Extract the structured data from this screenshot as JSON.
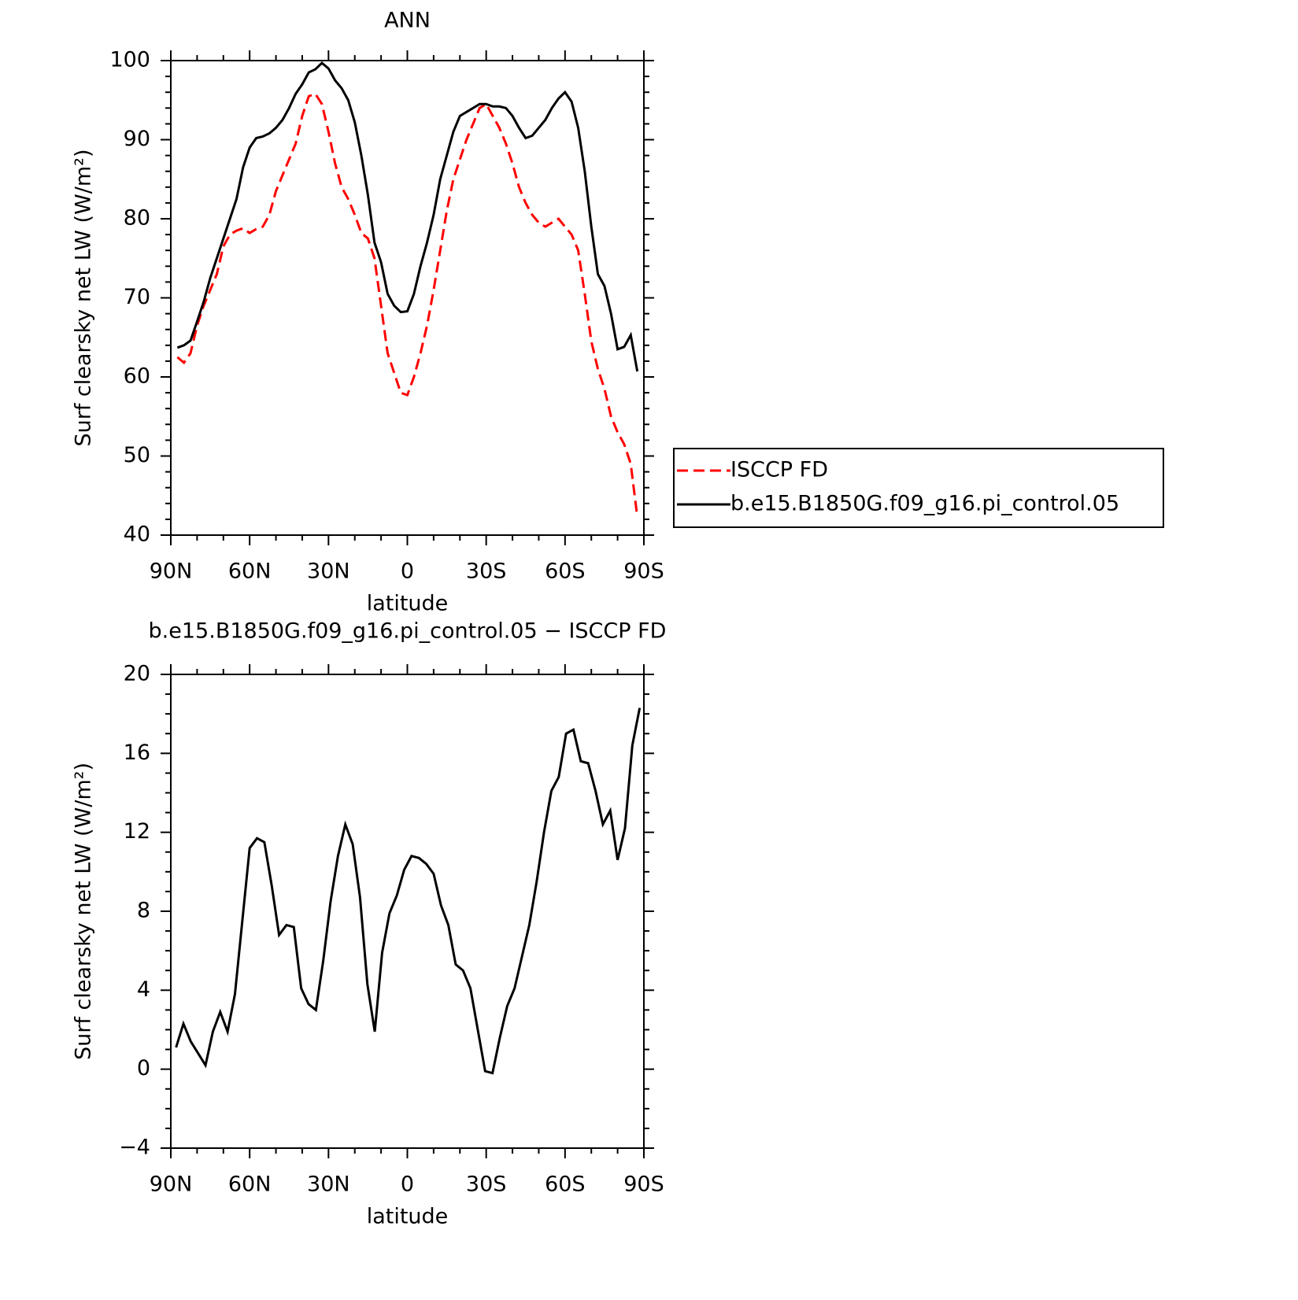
{
  "chart_data": [
    {
      "type": "line",
      "title": "ANN",
      "xlabel": "latitude",
      "ylabel": "Surf clearsky net LW (W/m²)",
      "x": [
        87.5,
        85,
        82.5,
        80,
        77.5,
        75,
        72.5,
        70,
        67.5,
        65,
        62.5,
        60,
        57.5,
        55,
        52.5,
        50,
        47.5,
        45,
        42.5,
        40,
        37.5,
        35,
        32.5,
        30,
        27.5,
        25,
        22.5,
        20,
        17.5,
        15,
        12.5,
        10,
        7.5,
        5,
        2.5,
        0,
        -2.5,
        -5,
        -7.5,
        -10,
        -12.5,
        -15,
        -17.5,
        -20,
        -22.5,
        -25,
        -27.5,
        -30,
        -32.5,
        -35,
        -37.5,
        -40,
        -42.5,
        -45,
        -47.5,
        -50,
        -52.5,
        -55,
        -57.5,
        -60,
        -62.5,
        -65,
        -67.5,
        -70,
        -72.5,
        -75,
        -77.5,
        -80,
        -82.5,
        -85,
        -87.5
      ],
      "series": [
        {
          "name": "ISCCP FD",
          "color": "#ff0000",
          "dash": true,
          "values": [
            62.5,
            61.8,
            63,
            66.5,
            69,
            71,
            73,
            76.5,
            78,
            78.5,
            78.8,
            78.2,
            78.7,
            79,
            80.5,
            83.5,
            85.5,
            87.5,
            89.5,
            93,
            95.5,
            95.8,
            94.5,
            91,
            87,
            84,
            82.5,
            80.5,
            78.2,
            77.5,
            75,
            69,
            63,
            60.5,
            58,
            57.7,
            60,
            63,
            66.5,
            71,
            76,
            81,
            85,
            87.5,
            90,
            92,
            94,
            94.5,
            93,
            91.5,
            89.5,
            87,
            84,
            82,
            80.5,
            79.5,
            79,
            79.5,
            80,
            79,
            78,
            76,
            70.5,
            64.5,
            61,
            58.5,
            55,
            53,
            51.5,
            49,
            42.3
          ]
        },
        {
          "name": "b.e15.B1850G.f09_g16.pi_control.05",
          "color": "#000000",
          "dash": false,
          "values": [
            63.7,
            64,
            64.6,
            67,
            69.5,
            72.5,
            75,
            77.5,
            80,
            82.5,
            86.5,
            89,
            90.2,
            90.4,
            90.8,
            91.5,
            92.5,
            94,
            95.8,
            97,
            98.5,
            98.9,
            99.7,
            99,
            97.5,
            96.5,
            95,
            92.2,
            88,
            83,
            77,
            74.5,
            70.5,
            69,
            68.2,
            68.3,
            70.5,
            74,
            77,
            80.5,
            85,
            88,
            91,
            93,
            93.5,
            94,
            94.5,
            94.5,
            94.2,
            94.2,
            94,
            93,
            91.5,
            90.2,
            90.5,
            91.5,
            92.5,
            94,
            95.2,
            96,
            94.8,
            91.5,
            86,
            79,
            73,
            71.5,
            68,
            63.5,
            63.8,
            65.3,
            60.7
          ]
        }
      ],
      "xlim": [
        90,
        -90
      ],
      "xticks": [
        {
          "value": 90,
          "label": "90N"
        },
        {
          "value": 60,
          "label": "60N"
        },
        {
          "value": 30,
          "label": "30N"
        },
        0,
        {
          "value": -30,
          "label": "30S"
        },
        {
          "value": -60,
          "label": "60S"
        },
        {
          "value": -90,
          "label": "90S"
        }
      ],
      "ylim": [
        40,
        100
      ],
      "yticks": [
        40,
        50,
        60,
        70,
        80,
        90,
        100
      ],
      "legend": "outside-right"
    },
    {
      "type": "line",
      "title": "b.e15.B1850G.f09_g16.pi_control.05 − ISCCP FD",
      "xlabel": "latitude",
      "ylabel": "Surf clearsky net LW (W/m²)",
      "x": [
        88,
        85.2,
        82.4,
        79.6,
        76.8,
        74,
        71.2,
        68.4,
        65.6,
        62.8,
        60,
        57.2,
        54.4,
        51.6,
        48.8,
        46,
        43.2,
        40.4,
        37.6,
        34.8,
        32,
        29.2,
        26.4,
        23.6,
        20.8,
        18,
        15.2,
        12.4,
        9.6,
        6.8,
        4,
        1.2,
        -1.6,
        -4.4,
        -7.2,
        -10,
        -12.8,
        -15.6,
        -18.4,
        -21.2,
        -24,
        -26.8,
        -29.6,
        -32.4,
        -35.2,
        -38,
        -40.8,
        -43.6,
        -46.4,
        -49.2,
        -52,
        -54.8,
        -57.6,
        -60.4,
        -63.2,
        -66,
        -68.8,
        -71.6,
        -74.4,
        -77.2,
        -80,
        -82.8,
        -85.6,
        -88.4
      ],
      "series": [
        {
          "color": "#000000",
          "dash": false,
          "values": [
            1.1,
            2.3,
            1.4,
            0.8,
            0.2,
            1.9,
            2.9,
            1.9,
            3.8,
            7.5,
            11.2,
            11.7,
            11.5,
            9.3,
            6.8,
            7.3,
            7.2,
            4.1,
            3.3,
            3.0,
            5.5,
            8.5,
            10.8,
            12.4,
            11.4,
            8.7,
            4.3,
            1.9,
            5.9,
            7.9,
            8.8,
            10.1,
            10.8,
            10.7,
            10.4,
            9.9,
            8.3,
            7.3,
            5.3,
            5.0,
            4.1,
            2.0,
            -0.1,
            -0.2,
            1.6,
            3.2,
            4.1,
            5.7,
            7.3,
            9.5,
            12.0,
            14.1,
            14.8,
            17.0,
            17.2,
            15.6,
            15.5,
            14.1,
            12.4,
            13.1,
            10.6,
            12.2,
            16.4,
            18.3
          ]
        }
      ],
      "xlim": [
        90,
        -90
      ],
      "xticks": [
        {
          "value": 90,
          "label": "90N"
        },
        {
          "value": 60,
          "label": "60N"
        },
        {
          "value": 30,
          "label": "30N"
        },
        0,
        {
          "value": -30,
          "label": "30S"
        },
        {
          "value": -60,
          "label": "60S"
        },
        {
          "value": -90,
          "label": "90S"
        }
      ],
      "ylim": [
        -4,
        20
      ],
      "yticks": [
        {
          "value": -4,
          "label": "−4"
        },
        0,
        4,
        8,
        12,
        16,
        20
      ]
    }
  ]
}
